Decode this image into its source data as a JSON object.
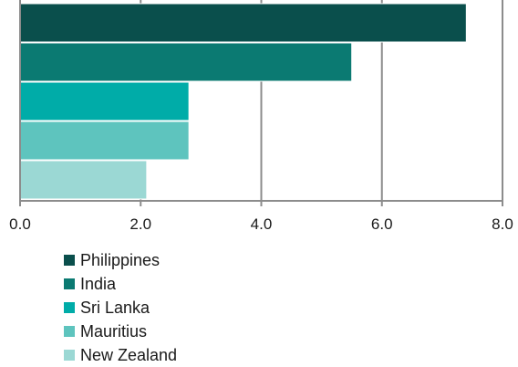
{
  "chart_data": {
    "type": "bar",
    "orientation": "horizontal",
    "title": "",
    "xlabel": "",
    "ylabel": "",
    "xlim": [
      0,
      8
    ],
    "x_ticks": [
      "0.0",
      "2.0",
      "4.0",
      "6.0",
      "8.0"
    ],
    "grid": "vertical",
    "categories": [
      "Philippines",
      "India",
      "Sri Lanka",
      "Mauritius",
      "New Zealand"
    ],
    "values": [
      7.4,
      5.5,
      2.8,
      2.8,
      2.1
    ],
    "colors": [
      "#0a4f4c",
      "#0b7a72",
      "#00aca8",
      "#5ec4be",
      "#9bd8d4"
    ],
    "legend": {
      "position": "bottom-left",
      "items": [
        "Philippines",
        "India",
        "Sri Lanka",
        "Mauritius",
        "New Zealand"
      ]
    }
  }
}
